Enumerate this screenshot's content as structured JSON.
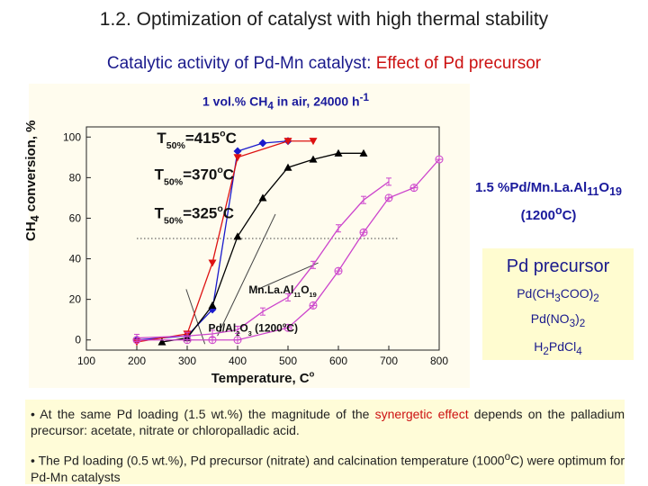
{
  "slide": {
    "title": "1.2. Optimization of catalyst with high thermal stability",
    "subtitle_blue": "Catalytic activity of Pd-Mn catalyst: ",
    "subtitle_red": "Effect of Pd precursor"
  },
  "chart_data": {
    "type": "scatter",
    "title": "1 vol.% CH4 in air, 24000 h-1",
    "title_parts": {
      "main": "1 vol.% CH",
      "sub": "4",
      "rest": " in air, 24000 h",
      "sup": "-1"
    },
    "xlabel": "Temperature, oC",
    "xlabel_parts": {
      "main": "Temperature, ",
      "sup": "o",
      "rest": "C"
    },
    "ylabel": "CH4 conversion, %",
    "xlim": [
      100,
      800
    ],
    "ylim": [
      -5,
      105
    ],
    "xticks": [
      100,
      200,
      300,
      400,
      500,
      600,
      700,
      800
    ],
    "yticks": [
      0,
      20,
      40,
      60,
      80,
      100
    ],
    "grid": false,
    "series": [
      {
        "name": "Pd(CH3COO)2",
        "color": "#1a1acc",
        "marker": "diamond",
        "connect": true,
        "points": [
          [
            200,
            0
          ],
          [
            300,
            2
          ],
          [
            350,
            15
          ],
          [
            400,
            93
          ],
          [
            450,
            97
          ],
          [
            500,
            98
          ]
        ]
      },
      {
        "name": "Pd(NO3)2",
        "color": "#dd1111",
        "marker": "triangle-down",
        "connect": true,
        "points": [
          [
            200,
            -1
          ],
          [
            300,
            3
          ],
          [
            350,
            38
          ],
          [
            400,
            90
          ],
          [
            500,
            98
          ],
          [
            550,
            98
          ]
        ]
      },
      {
        "name": "H2PdCl4",
        "color": "#000000",
        "marker": "triangle-up",
        "connect": true,
        "points": [
          [
            250,
            -1
          ],
          [
            300,
            1
          ],
          [
            350,
            17
          ],
          [
            400,
            51
          ],
          [
            450,
            70
          ],
          [
            500,
            85
          ],
          [
            550,
            89
          ],
          [
            600,
            92
          ],
          [
            650,
            92
          ]
        ]
      },
      {
        "name": "Mn.La.Al11O19",
        "color": "#cc44cc",
        "marker": "circle-plus",
        "connect": true,
        "points": [
          [
            200,
            0
          ],
          [
            300,
            0
          ],
          [
            350,
            0
          ],
          [
            400,
            0
          ],
          [
            500,
            6
          ],
          [
            550,
            17
          ],
          [
            600,
            34
          ],
          [
            650,
            53
          ],
          [
            700,
            70
          ],
          [
            750,
            75
          ],
          [
            800,
            89
          ]
        ]
      },
      {
        "name": "Pd/Al2O3 (1200oC)",
        "color": "#cc44cc",
        "marker": "i-beam",
        "connect": true,
        "points": [
          [
            200,
            1
          ],
          [
            300,
            2
          ],
          [
            350,
            3
          ],
          [
            400,
            5
          ],
          [
            450,
            14
          ],
          [
            500,
            21
          ],
          [
            550,
            37
          ],
          [
            600,
            55
          ],
          [
            650,
            69
          ],
          [
            700,
            78
          ]
        ]
      }
    ],
    "annotations": {
      "t50_a": {
        "main": "T",
        "sub": "50%",
        "rest": "=415",
        "sup": "o",
        "tail": "C"
      },
      "t50_b": {
        "main": "T",
        "sub": "50%",
        "rest": "=370",
        "sup": "o",
        "tail": "C"
      },
      "t50_c": {
        "main": "T",
        "sub": "50%",
        "rest": "=325",
        "sup": "o",
        "tail": "C"
      },
      "mnlaal": {
        "main": "Mn.La.Al",
        "sub": "11",
        "mid": "O",
        "sub2": "19"
      },
      "pdal": {
        "main": "Pd/Al",
        "sub": "2",
        "mid": "O",
        "sub2": "3",
        "rest": " (1200",
        "sup": "o",
        "tail": "C)"
      }
    }
  },
  "catalyst_label": {
    "line1": {
      "main": "1.5 %Pd/Mn.La.Al",
      "sub": "11",
      "mid": "O",
      "sub2": "19"
    },
    "line2": {
      "main": "(1200",
      "sup": "o",
      "tail": "C)"
    }
  },
  "precursor_panel": {
    "title": "Pd precursor",
    "items": [
      {
        "main": "Pd(CH",
        "sub": "3",
        "mid": "COO)",
        "sub2": "2"
      },
      {
        "main": "Pd(NO",
        "sub": "3",
        "mid": ")",
        "sub2": "2"
      },
      {
        "main": "H",
        "sub": "2",
        "mid": "PdCl",
        "sub2": "4"
      }
    ]
  },
  "bullets": [
    {
      "a": "• At the same Pd loading (1.5 wt.%) the magnitude of the ",
      "b": "synergetic effect",
      "c": " depends on the palladium precursor: acetate, nitrate or chloropalladic acid."
    },
    {
      "a": "• The Pd loading (0.5 wt.%), Pd precursor (nitrate) and calcination temperature (1000",
      "sup": "o",
      "c": "C) were optimum for  Pd-Mn catalysts"
    }
  ]
}
